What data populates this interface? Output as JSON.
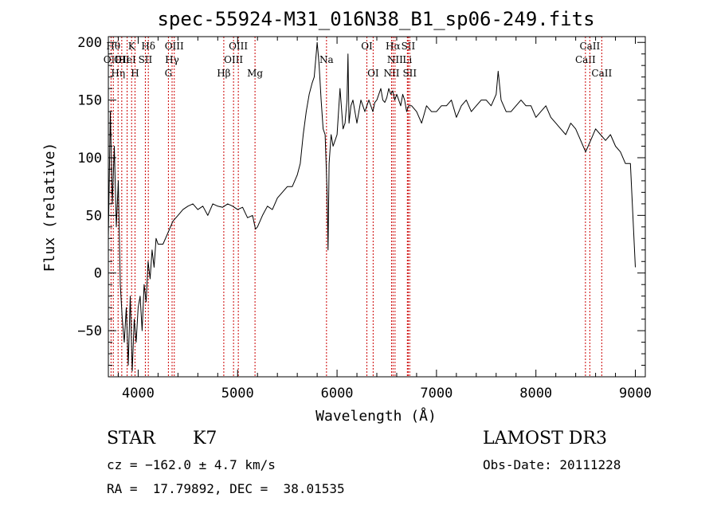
{
  "chart_data": {
    "type": "line",
    "title": "spec-55924-M31_016N38_B1_sp06-249.fits",
    "xlabel": "Wavelength (Å)",
    "ylabel": "Flux (relative)",
    "xlim": [
      3700,
      9100
    ],
    "ylim": [
      -90,
      205
    ],
    "xticks": [
      4000,
      5000,
      6000,
      7000,
      8000,
      9000
    ],
    "xtick_labels": [
      "4000",
      "5000",
      "6000",
      "7000",
      "8000",
      "9000"
    ],
    "yticks": [
      -50,
      0,
      50,
      100,
      150,
      200
    ],
    "ytick_labels": [
      "−50",
      "0",
      "50",
      "100",
      "150",
      "200"
    ],
    "line_color": "#000000",
    "marker_color": "#cc0000",
    "series": [
      {
        "x": [
          3700,
          3720,
          3740,
          3760,
          3780,
          3800,
          3820,
          3840,
          3860,
          3880,
          3900,
          3920,
          3940,
          3960,
          3980,
          4000,
          4020,
          4040,
          4060,
          4080,
          4100,
          4120,
          4140,
          4160,
          4180,
          4200,
          4250,
          4300,
          4350,
          4400,
          4450,
          4500,
          4550,
          4600,
          4650,
          4700,
          4750,
          4800,
          4850,
          4900,
          4950,
          5000,
          5050,
          5100,
          5150,
          5180,
          5200,
          5250,
          5300,
          5350,
          5400,
          5450,
          5500,
          5550,
          5600,
          5630,
          5660,
          5690,
          5720,
          5750,
          5770,
          5790,
          5800,
          5810,
          5820,
          5840,
          5860,
          5880,
          5900,
          5910,
          5920,
          5940,
          5960,
          5980,
          6000,
          6030,
          6060,
          6080,
          6100,
          6110,
          6120,
          6140,
          6160,
          6180,
          6200,
          6220,
          6240,
          6260,
          6280,
          6300,
          6320,
          6340,
          6360,
          6380,
          6400,
          6420,
          6440,
          6460,
          6480,
          6500,
          6520,
          6540,
          6560,
          6580,
          6600,
          6620,
          6640,
          6660,
          6680,
          6700,
          6720,
          6750,
          6800,
          6850,
          6900,
          6950,
          7000,
          7050,
          7100,
          7150,
          7200,
          7250,
          7300,
          7350,
          7400,
          7450,
          7500,
          7550,
          7600,
          7620,
          7650,
          7700,
          7750,
          7800,
          7850,
          7900,
          7950,
          8000,
          8050,
          8100,
          8150,
          8200,
          8250,
          8300,
          8350,
          8400,
          8450,
          8500,
          8550,
          8600,
          8650,
          8700,
          8750,
          8800,
          8850,
          8900,
          8950,
          9000
        ],
        "values": [
          30,
          140,
          60,
          110,
          40,
          80,
          -10,
          -40,
          -60,
          -30,
          -80,
          -20,
          -85,
          -40,
          -60,
          -30,
          -20,
          -50,
          -10,
          -25,
          10,
          -5,
          20,
          5,
          30,
          25,
          25,
          35,
          45,
          50,
          55,
          58,
          60,
          55,
          58,
          50,
          60,
          58,
          57,
          60,
          58,
          55,
          57,
          48,
          50,
          38,
          40,
          50,
          58,
          55,
          65,
          70,
          75,
          75,
          85,
          95,
          120,
          140,
          155,
          165,
          170,
          190,
          200,
          190,
          180,
          150,
          125,
          120,
          70,
          20,
          95,
          120,
          110,
          115,
          120,
          160,
          125,
          130,
          150,
          190,
          130,
          145,
          150,
          140,
          130,
          140,
          150,
          145,
          140,
          145,
          150,
          145,
          140,
          148,
          150,
          155,
          160,
          150,
          148,
          152,
          160,
          155,
          158,
          150,
          155,
          150,
          145,
          155,
          150,
          140,
          145,
          145,
          140,
          130,
          145,
          140,
          140,
          145,
          145,
          150,
          135,
          145,
          150,
          140,
          145,
          150,
          150,
          145,
          155,
          175,
          150,
          140,
          140,
          145,
          150,
          145,
          145,
          135,
          140,
          145,
          135,
          130,
          125,
          120,
          130,
          125,
          115,
          105,
          115,
          125,
          120,
          115,
          120,
          110,
          105,
          95,
          95,
          5
        ]
      }
    ],
    "line_markers": [
      {
        "wavelength": 3727,
        "label": "OII",
        "row": 2
      },
      {
        "wavelength": 3750,
        "label": "Hθ",
        "row": 1
      },
      {
        "wavelength": 3798,
        "label": "Hη",
        "row": 3
      },
      {
        "wavelength": 3835,
        "label": "OII",
        "row": 2
      },
      {
        "wavelength": 3889,
        "label": "HeI",
        "row": 2
      },
      {
        "wavelength": 3934,
        "label": "K",
        "row": 1
      },
      {
        "wavelength": 3968,
        "label": "H",
        "row": 3
      },
      {
        "wavelength": 4072,
        "label": "SII",
        "row": 2
      },
      {
        "wavelength": 4102,
        "label": "Hδ",
        "row": 1
      },
      {
        "wavelength": 4304,
        "label": "G",
        "row": 3
      },
      {
        "wavelength": 4341,
        "label": "Hγ",
        "row": 2
      },
      {
        "wavelength": 4363,
        "label": "OIII",
        "row": 1
      },
      {
        "wavelength": 4861,
        "label": "Hβ",
        "row": 3
      },
      {
        "wavelength": 4959,
        "label": "OIII",
        "row": 2
      },
      {
        "wavelength": 5007,
        "label": "OIII",
        "row": 1
      },
      {
        "wavelength": 5175,
        "label": "Mg",
        "row": 3
      },
      {
        "wavelength": 5894,
        "label": "Na",
        "row": 2
      },
      {
        "wavelength": 6300,
        "label": "OI",
        "row": 1
      },
      {
        "wavelength": 6363,
        "label": "OI",
        "row": 3
      },
      {
        "wavelength": 6548,
        "label": "NII",
        "row": 3
      },
      {
        "wavelength": 6563,
        "label": "Hα",
        "row": 1
      },
      {
        "wavelength": 6583,
        "label": "NII",
        "row": 2
      },
      {
        "wavelength": 6707,
        "label": "Li",
        "row": 2
      },
      {
        "wavelength": 6716,
        "label": "SII",
        "row": 1
      },
      {
        "wavelength": 6731,
        "label": "SII",
        "row": 3
      },
      {
        "wavelength": 8498,
        "label": "CaII",
        "row": 2
      },
      {
        "wavelength": 8542,
        "label": "CaII",
        "row": 1
      },
      {
        "wavelength": 8662,
        "label": "CaII",
        "row": 3
      }
    ]
  },
  "info": {
    "class": "STAR",
    "subclass": "K7",
    "survey": "LAMOST DR3",
    "cz": "cz = −162.0 ± 4.7 km/s",
    "obs_date": "Obs-Date: 20111228",
    "coords": "RA =  17.79892, DEC =  38.01535"
  }
}
